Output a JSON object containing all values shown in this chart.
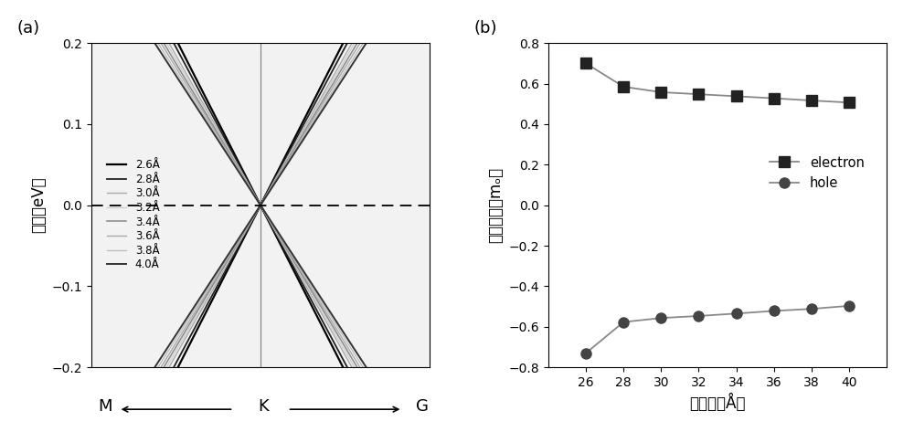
{
  "panel_a_label": "(a)",
  "panel_b_label": "(b)",
  "ylabel_a": "能量（eV）",
  "xlabel_a_M": "M",
  "xlabel_a_K": "K",
  "xlabel_a_G": "G",
  "ylim_a": [
    -0.2,
    0.2
  ],
  "yticks_a": [
    -0.2,
    -0.1,
    0.0,
    0.1,
    0.2
  ],
  "band_distances": [
    2.6,
    2.8,
    3.0,
    3.2,
    3.4,
    3.6,
    3.8,
    4.0
  ],
  "band_colors": [
    "#000000",
    "#222222",
    "#aaaaaa",
    "#cccccc",
    "#888888",
    "#aaaaaa",
    "#bbbbbb",
    "#333333"
  ],
  "band_lws": [
    1.6,
    1.3,
    1.0,
    0.9,
    1.1,
    1.0,
    0.9,
    1.4
  ],
  "band_slopes": [
    0.82,
    0.78,
    0.74,
    0.72,
    0.7,
    0.68,
    0.66,
    0.64
  ],
  "legend_labels_a": [
    "2.6Å",
    "2.8Å",
    "3.0Å",
    "3.2Å",
    "3.4Å",
    "3.6Å",
    "3.8Å",
    "4.0Å"
  ],
  "ylabel_b": "有效质量（mₒ）",
  "xlabel_b": "层间距（Å）",
  "ylim_b": [
    -0.8,
    0.8
  ],
  "yticks_b": [
    -0.8,
    -0.6,
    -0.4,
    -0.2,
    0.0,
    0.2,
    0.4,
    0.6,
    0.8
  ],
  "xlim_b": [
    24,
    42
  ],
  "xticks_b": [
    26,
    28,
    30,
    32,
    34,
    36,
    38,
    40
  ],
  "electron_x": [
    26,
    28,
    30,
    32,
    34,
    36,
    38,
    40
  ],
  "electron_y": [
    0.7,
    0.585,
    0.558,
    0.548,
    0.538,
    0.528,
    0.517,
    0.507
  ],
  "hole_x": [
    26,
    28,
    30,
    32,
    34,
    36,
    38,
    40
  ],
  "hole_y": [
    -0.73,
    -0.577,
    -0.557,
    -0.547,
    -0.535,
    -0.522,
    -0.512,
    -0.497
  ],
  "line_color_b": "#888888",
  "marker_electron_color": "#222222",
  "marker_hole_color": "#444444",
  "legend_electron": "electron",
  "legend_hole": "hole",
  "bg_color_a": "#f0f0f0"
}
